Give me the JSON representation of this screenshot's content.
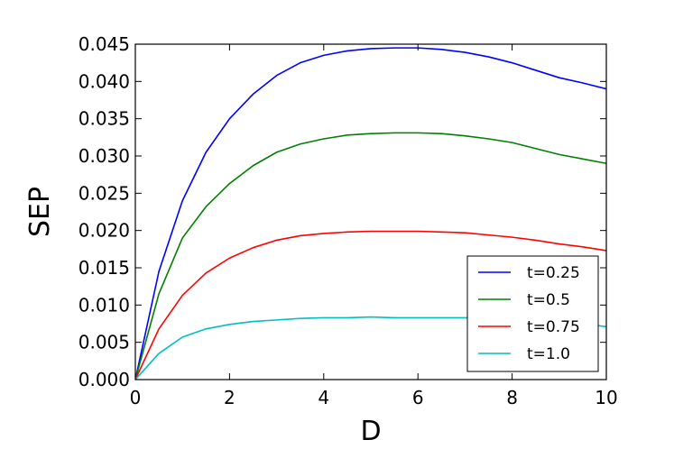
{
  "chart_data": {
    "type": "line",
    "title": "",
    "xlabel": "D",
    "ylabel": "SEP",
    "xlim": [
      0,
      10
    ],
    "ylim": [
      0,
      0.045
    ],
    "xticks": [
      "0",
      "2",
      "4",
      "6",
      "8",
      "10"
    ],
    "yticks": [
      "0.000",
      "0.005",
      "0.010",
      "0.015",
      "0.020",
      "0.025",
      "0.030",
      "0.035",
      "0.040",
      "0.045"
    ],
    "grid": false,
    "legend_position": "bottom-right",
    "x": [
      0,
      0.5,
      1,
      1.5,
      2,
      2.5,
      3,
      3.5,
      4,
      4.5,
      5,
      5.5,
      6,
      6.5,
      7,
      7.5,
      8,
      8.5,
      9,
      9.5,
      10
    ],
    "series": [
      {
        "name": "t=0.25",
        "color": "#0000ff",
        "values": [
          0,
          0.0145,
          0.024,
          0.0305,
          0.035,
          0.0383,
          0.0408,
          0.0425,
          0.0435,
          0.0441,
          0.0444,
          0.0445,
          0.0445,
          0.0443,
          0.0439,
          0.0433,
          0.0425,
          0.0415,
          0.0405,
          0.0398,
          0.039
        ]
      },
      {
        "name": "t=0.5",
        "color": "#008000",
        "values": [
          0,
          0.0115,
          0.019,
          0.0232,
          0.0263,
          0.0287,
          0.0305,
          0.0316,
          0.0323,
          0.0328,
          0.033,
          0.0331,
          0.0331,
          0.033,
          0.0327,
          0.0323,
          0.0318,
          0.031,
          0.0302,
          0.0296,
          0.029
        ]
      },
      {
        "name": "t=0.75",
        "color": "#ff0000",
        "values": [
          0,
          0.0068,
          0.0113,
          0.0143,
          0.0163,
          0.0177,
          0.0187,
          0.0193,
          0.0196,
          0.0198,
          0.0199,
          0.0199,
          0.0199,
          0.0198,
          0.0197,
          0.0194,
          0.0191,
          0.0187,
          0.0182,
          0.0178,
          0.0173
        ]
      },
      {
        "name": "t=1.0",
        "color": "#00bfbf",
        "values": [
          0,
          0.0035,
          0.0057,
          0.0068,
          0.0074,
          0.0078,
          0.008,
          0.0082,
          0.0083,
          0.0083,
          0.0084,
          0.0083,
          0.0083,
          0.0083,
          0.0083,
          0.0082,
          0.0081,
          0.008,
          0.0078,
          0.0075,
          0.0071
        ]
      }
    ]
  }
}
